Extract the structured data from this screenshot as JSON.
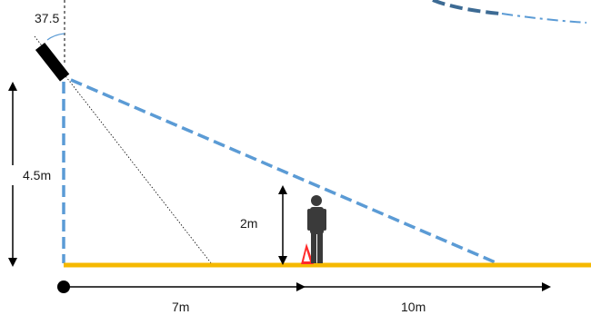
{
  "labels": {
    "tilt_angle": "37.5",
    "mount_height": "4.5m",
    "person_height": "2m",
    "distance_near": "7m",
    "distance_far": "10m"
  },
  "colors": {
    "ground": "#f5b800",
    "coverage": "#5b9bd5",
    "coverage_dark": "#3d6b94",
    "arrow": "#000000",
    "camera": "#000000",
    "marker": "#ff0000",
    "person": "#3a3a3a"
  },
  "icons": {
    "camera": "camera-icon",
    "person": "person-icon",
    "marker": "warning-triangle-icon"
  }
}
